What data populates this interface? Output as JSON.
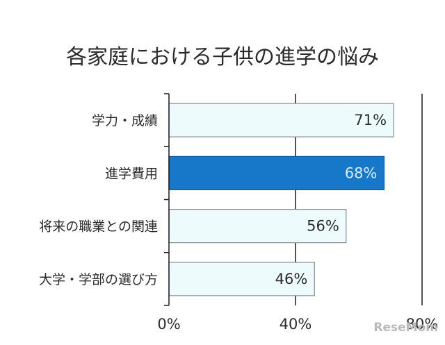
{
  "chart_data": {
    "type": "bar",
    "orientation": "horizontal",
    "title": "各家庭における子供の進学の悩み",
    "categories": [
      "学力・成績",
      "進学費用",
      "将来の職業との関連",
      "大学・学部の選び方"
    ],
    "values": [
      71,
      68,
      56,
      46
    ],
    "value_labels": [
      "71%",
      "68%",
      "56%",
      "46%"
    ],
    "xlim": [
      0,
      80
    ],
    "xticks": [
      0,
      40,
      80
    ],
    "xtick_labels": [
      "0%",
      "40%",
      "80%"
    ],
    "grid": "vertical",
    "highlight_index": 1,
    "colors": {
      "bar_fill": "#eefbfd",
      "bar_stroke": "#8a8a8a",
      "highlight_fill": "#1777c9",
      "highlight_stroke": "#0d5aa0",
      "value_text": "#2b2b2b",
      "highlight_value_text": "#d9ecff",
      "axis": "#1a1a1a"
    }
  },
  "watermark": {
    "text": "ReseMom"
  }
}
